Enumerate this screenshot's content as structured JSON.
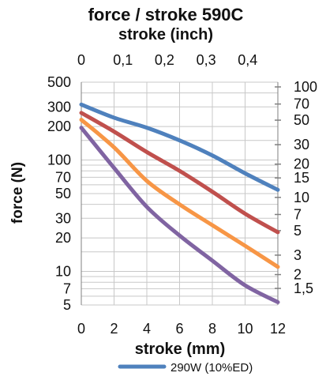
{
  "chart_data": {
    "type": "line",
    "title": "force / stroke 590C",
    "xlabel": "stroke (mm)",
    "x2label": "stroke (inch)",
    "ylabel": "force (N)",
    "y_scale": "log",
    "xlim": [
      0,
      12
    ],
    "ylim": [
      5,
      500
    ],
    "grid": true,
    "legend_position": "bottom",
    "x_ticks": [
      "0",
      "2",
      "4",
      "6",
      "8",
      "10",
      "12"
    ],
    "x2_ticks": [
      "0",
      "0,1",
      "0,2",
      "0,3",
      "0,4"
    ],
    "y_ticks_left": [
      "500",
      "300",
      "200",
      "100",
      "70",
      "50",
      "30",
      "20",
      "10",
      "7",
      "5"
    ],
    "y_ticks_right": [
      "100",
      "70",
      "50",
      "30",
      "20",
      "15",
      "10",
      "7",
      "5",
      "3",
      "2",
      "1,5"
    ],
    "series": [
      {
        "name": "290W (10%ED)",
        "color": "#4F81BD",
        "x": [
          0,
          2,
          4,
          6,
          8,
          10,
          12
        ],
        "y": [
          315,
          240,
          195,
          150,
          110,
          76,
          54
        ]
      },
      {
        "color": "#C0504D",
        "x": [
          0,
          2,
          4,
          6,
          8,
          10,
          12
        ],
        "y": [
          265,
          180,
          118,
          80,
          52,
          33,
          22.5
        ]
      },
      {
        "color": "#F79646",
        "x": [
          0,
          2,
          4,
          6,
          8,
          10,
          12
        ],
        "y": [
          230,
          130,
          65,
          40,
          26,
          17,
          11
        ]
      },
      {
        "color": "#8064A2",
        "x": [
          0,
          2,
          4,
          6,
          8,
          10,
          12
        ],
        "y": [
          195,
          85,
          38,
          21,
          12.5,
          7.5,
          5.3
        ]
      }
    ]
  }
}
